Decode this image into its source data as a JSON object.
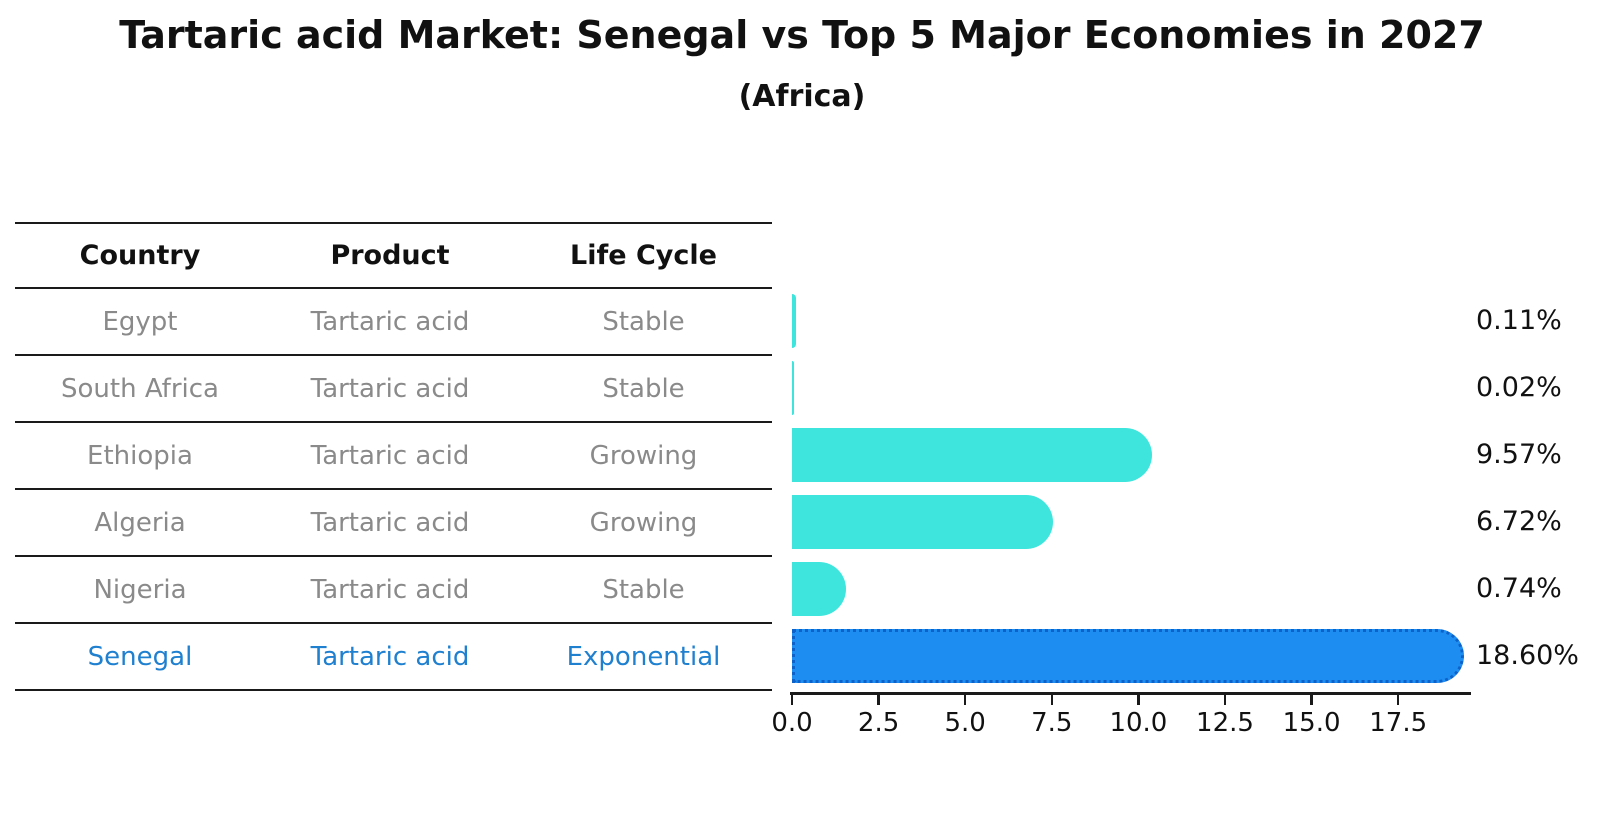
{
  "chart": {
    "title": "Tartaric acid Market: Senegal vs Top 5 Major Economies in 2027",
    "subtitle": "(Africa)"
  },
  "table": {
    "headers": [
      "Country",
      "Product",
      "Life Cycle"
    ],
    "rows": [
      {
        "country": "Egypt",
        "product": "Tartaric acid",
        "life_cycle": "Stable",
        "highlight": false
      },
      {
        "country": "South Africa",
        "product": "Tartaric acid",
        "life_cycle": "Stable",
        "highlight": false
      },
      {
        "country": "Ethiopia",
        "product": "Tartaric acid",
        "life_cycle": "Growing",
        "highlight": false
      },
      {
        "country": "Algeria",
        "product": "Tartaric acid",
        "life_cycle": "Growing",
        "highlight": false
      },
      {
        "country": "Nigeria",
        "product": "Tartaric acid",
        "life_cycle": "Stable",
        "highlight": false
      },
      {
        "country": "Senegal",
        "product": "Tartaric acid",
        "life_cycle": "Exponential",
        "highlight": true
      }
    ]
  },
  "chart_data": {
    "type": "bar",
    "orientation": "horizontal",
    "title": "Tartaric acid Market: Senegal vs Top 5 Major Economies in 2027",
    "subtitle": "(Africa)",
    "categories": [
      "Egypt",
      "South Africa",
      "Ethiopia",
      "Algeria",
      "Nigeria",
      "Senegal"
    ],
    "values": [
      0.11,
      0.02,
      9.57,
      6.72,
      0.74,
      18.6
    ],
    "value_labels": [
      "0.11%",
      "0.02%",
      "9.57%",
      "6.72%",
      "0.74%",
      "18.60%"
    ],
    "highlight_index": 5,
    "xlabel": "",
    "ylabel": "",
    "xlim": [
      0,
      19.6
    ],
    "x_ticks": [
      0.0,
      2.5,
      5.0,
      7.5,
      10.0,
      12.5,
      15.0,
      17.5
    ],
    "x_tick_labels": [
      "0.0",
      "2.5",
      "5.0",
      "7.5",
      "10.0",
      "12.5",
      "15.0",
      "17.5"
    ],
    "grid": false,
    "legend": false,
    "colors": {
      "default_bar": "#3ee5dd",
      "highlight_bar": "#1e8df2",
      "highlight_bar_edge": "#0c62c9",
      "highlight_text": "#1f80d0",
      "table_text": "#8a8a8a",
      "axis_text": "#111111",
      "line": "#1a1a1a"
    }
  }
}
